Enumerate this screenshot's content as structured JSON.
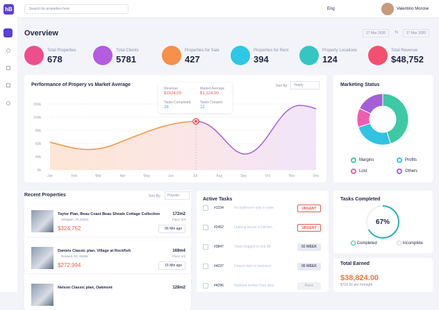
{
  "topbar": {
    "search_placeholder": "Search for properties here",
    "language": "Eng",
    "user": "Valentino Morose"
  },
  "overview": {
    "title": "Overview",
    "date_from": "17 Mar 2020",
    "date_sep": "To",
    "date_to": "17 Mar 2020"
  },
  "stats": [
    {
      "label": "Total Properties",
      "value": "678",
      "color": "#ec4f8c"
    },
    {
      "label": "Total Clients",
      "value": "5781",
      "color": "#b45be0"
    },
    {
      "label": "Properties for Sale",
      "value": "427",
      "color": "#f5914a"
    },
    {
      "label": "Properties for Rent",
      "value": "394",
      "color": "#2ec7e6"
    },
    {
      "label": "Property Locations",
      "value": "124",
      "color": "#35c6c4"
    },
    {
      "label": "Total Revenue",
      "value": "$48,752",
      "color": "#f2506f"
    }
  ],
  "performance": {
    "title": "Performance of Propery vs Market Average",
    "sort_label": "Sort By:",
    "sort_value": "Yearly",
    "tooltip": {
      "revenue_label": "Revenue",
      "revenue": "$1524.00",
      "market_label": "Market Average",
      "market": "$1,124.00",
      "completed_label": "Tasks Completed",
      "completed": "28",
      "created_label": "Tasks Created",
      "created": "22"
    },
    "yticks": [
      "150k",
      "100k",
      "80k",
      "60k",
      "40k",
      "0k"
    ],
    "months": [
      "Jan",
      "Feb",
      "Mar",
      "Apr",
      "May",
      "Jun",
      "Jul",
      "Aug",
      "Sep",
      "Oct",
      "Nov",
      "Dec"
    ]
  },
  "marketing": {
    "title": "Marketing  Status",
    "segments": [
      {
        "name": "Margins",
        "value": 45,
        "color": "#3cc9a4"
      },
      {
        "name": "Profits",
        "value": 25,
        "color": "#32c3e3"
      },
      {
        "name": "Lost",
        "value": 12,
        "color": "#ec5fb0"
      },
      {
        "name": "Others",
        "value": 18,
        "color": "#a45fd8"
      }
    ]
  },
  "recent": {
    "title": "Recent Properties",
    "sort_label": "Sort By:",
    "sort_value": "Popular",
    "items": [
      {
        "name": "Taylor Plan, Beau Coast Beau Shoals Cottage Collection",
        "location": "Arlington, VA 22201",
        "area": "172m2",
        "floor": "Floor: 2/3",
        "price": "$324,752",
        "time": "06 Min ago"
      },
      {
        "name": "Daniels Classic plan, Village at Rockfish",
        "location": "Roswell, NC 28456",
        "area": "169m4",
        "floor": "Floor: 1/2",
        "price": "$272,994",
        "time": "15 Min ago"
      },
      {
        "name": "Nelson Classic plan, Oakmont",
        "location": "",
        "area": "128m2",
        "floor": "",
        "price": "",
        "time": ""
      }
    ]
  },
  "tasks": {
    "title": "Active Tasks",
    "rows": [
      {
        "id": "#1234",
        "text": "Fix bathroom sink in suite",
        "tag": "URGENT"
      },
      {
        "id": "#2452",
        "text": "Leaking faucet in kitchen",
        "tag": "URGENT"
      },
      {
        "id": "#3847",
        "text": "Toilet clogged in unit 4B",
        "tag": "02 WEEK"
      },
      {
        "id": "#4237",
        "text": "Carpet stain in bedroom",
        "tag": "05 WEEK"
      },
      {
        "id": "#4296",
        "text": "Replace broken front door",
        "tag": "Done"
      }
    ]
  },
  "completed": {
    "title": "Tasks Completed",
    "value": 67,
    "value_label": "67%",
    "legend": [
      "Completed",
      "Incomplete"
    ]
  },
  "earned": {
    "title": "Total Earned",
    "value": "$38,824.00",
    "sub": "$715.00 per fortnight"
  }
}
